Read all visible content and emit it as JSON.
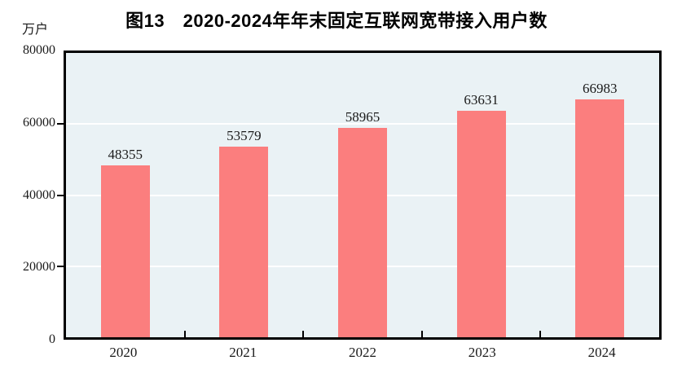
{
  "chart": {
    "title": "图13　2020-2024年年末固定互联网宽带接入用户数",
    "unit_label": "万户"
  },
  "chart_data": {
    "type": "bar",
    "title": "图13　2020-2024年年末固定互联网宽带接入用户数",
    "categories": [
      "2020",
      "2021",
      "2022",
      "2023",
      "2024"
    ],
    "values": [
      48355,
      53579,
      58965,
      63631,
      66983
    ],
    "xlabel": "",
    "ylabel": "万户",
    "ylim": [
      0,
      80000
    ],
    "yticks": [
      0,
      20000,
      40000,
      60000,
      80000
    ],
    "gridline_values": [
      20000,
      40000,
      60000
    ],
    "grid": true,
    "legend": false,
    "data_labels": true,
    "bar_color": "#fb7e7e",
    "plot_background": "#eaf2f5",
    "gridline_color": "#ffffff",
    "axis_color": "#000000"
  }
}
